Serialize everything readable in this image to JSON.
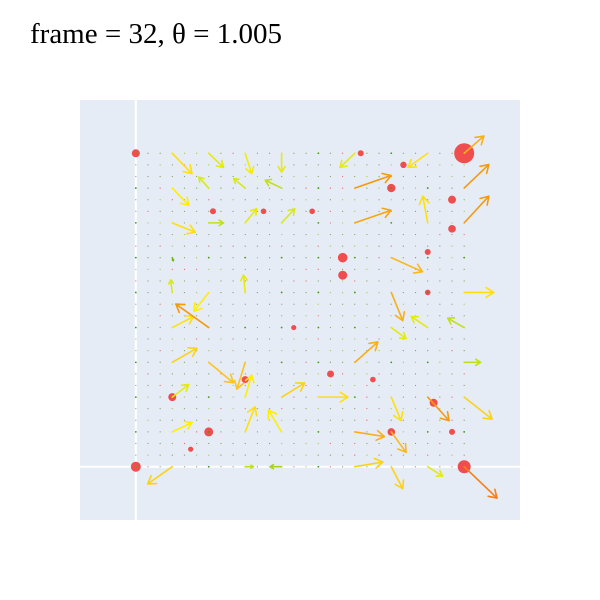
{
  "chart_data": {
    "type": "quiver",
    "title": "frame = 32, θ = 1.005",
    "xlabel": "",
    "ylabel": "",
    "xlim": [
      -0.17,
      1.17
    ],
    "ylim": [
      -0.17,
      1.17
    ],
    "grid": true,
    "grid_lines": {
      "x": [
        0
      ],
      "y": [
        0
      ]
    },
    "background": "#e5ecf6",
    "grid_size": 10,
    "arrows": [
      {
        "x": 0.0,
        "y": 1.0,
        "u": 0,
        "v": 0,
        "m": 0.08
      },
      {
        "x": 0.0,
        "y": 0.889,
        "u": 0,
        "v": 0,
        "m": 0.05
      },
      {
        "x": 0.0,
        "y": 0.778,
        "u": 0,
        "v": 0,
        "m": 0.05
      },
      {
        "x": 0.0,
        "y": 0.667,
        "u": 0,
        "v": 0,
        "m": 0.04
      },
      {
        "x": 0.0,
        "y": 0.556,
        "u": 0,
        "v": 0,
        "m": 0.05
      },
      {
        "x": 0.0,
        "y": 0.444,
        "u": 0,
        "v": 0,
        "m": 0.05
      },
      {
        "x": 0.0,
        "y": 0.333,
        "u": 0,
        "v": 0,
        "m": 0.05
      },
      {
        "x": 0.0,
        "y": 0.222,
        "u": 0,
        "v": 0,
        "m": 0.04
      },
      {
        "x": 0.0,
        "y": 0.111,
        "u": 0,
        "v": 0,
        "m": 0.05
      },
      {
        "x": 0.0,
        "y": 0.0,
        "u": 0,
        "v": 0,
        "m": 0.1
      },
      {
        "x": 0.111,
        "y": 1.0,
        "u": 0.06,
        "v": -0.065,
        "m": 0.55
      },
      {
        "x": 0.111,
        "y": 0.889,
        "u": 0.05,
        "v": -0.055,
        "m": 0.5
      },
      {
        "x": 0.111,
        "y": 0.778,
        "u": 0.07,
        "v": -0.03,
        "m": 0.55
      },
      {
        "x": 0.111,
        "y": 0.667,
        "u": 0.003,
        "v": -0.01,
        "m": 0.15
      },
      {
        "x": 0.111,
        "y": 0.556,
        "u": -0.005,
        "v": 0.04,
        "m": 0.35
      },
      {
        "x": 0.111,
        "y": 0.444,
        "u": 0.065,
        "v": 0.035,
        "m": 0.55
      },
      {
        "x": 0.111,
        "y": 0.333,
        "u": 0.075,
        "v": 0.045,
        "m": 0.6
      },
      {
        "x": 0.111,
        "y": 0.222,
        "u": 0.05,
        "v": 0.04,
        "m": 0.4
      },
      {
        "x": 0.111,
        "y": 0.111,
        "u": 0.06,
        "v": 0.03,
        "m": 0.5
      },
      {
        "x": 0.111,
        "y": 0.0,
        "u": -0.075,
        "v": -0.055,
        "m": 0.6
      },
      {
        "x": 0.222,
        "y": 1.0,
        "u": 0.045,
        "v": -0.045,
        "m": 0.4
      },
      {
        "x": 0.222,
        "y": 0.889,
        "u": -0.03,
        "v": 0.035,
        "m": 0.35
      },
      {
        "x": 0.222,
        "y": 0.778,
        "u": 0.045,
        "v": 0.0,
        "m": 0.3
      },
      {
        "x": 0.222,
        "y": 0.667,
        "u": 0.0,
        "v": 0,
        "m": 0.05
      },
      {
        "x": 0.222,
        "y": 0.556,
        "u": -0.045,
        "v": -0.06,
        "m": 0.5
      },
      {
        "x": 0.222,
        "y": 0.444,
        "u": -0.1,
        "v": 0.075,
        "m": 0.85
      },
      {
        "x": 0.222,
        "y": 0.333,
        "u": 0.075,
        "v": -0.065,
        "m": 0.65
      },
      {
        "x": 0.222,
        "y": 0.222,
        "u": 0.0,
        "v": 0,
        "m": 0.05
      },
      {
        "x": 0.222,
        "y": 0.111,
        "u": 0.0,
        "v": 0,
        "m": 0.05
      },
      {
        "x": 0.222,
        "y": 0.0,
        "u": 0.0,
        "v": 0,
        "m": 0.05
      },
      {
        "x": 0.333,
        "y": 1.0,
        "u": 0.02,
        "v": -0.065,
        "m": 0.45
      },
      {
        "x": 0.333,
        "y": 0.889,
        "u": -0.035,
        "v": 0.03,
        "m": 0.35
      },
      {
        "x": 0.333,
        "y": 0.778,
        "u": 0.035,
        "v": 0.045,
        "m": 0.4
      },
      {
        "x": 0.333,
        "y": 0.667,
        "u": 0.0,
        "v": 0,
        "m": 0.05
      },
      {
        "x": 0.333,
        "y": 0.556,
        "u": -0.005,
        "v": 0.055,
        "m": 0.4
      },
      {
        "x": 0.333,
        "y": 0.444,
        "u": 0.0,
        "v": 0,
        "m": 0.05
      },
      {
        "x": 0.333,
        "y": 0.333,
        "u": -0.025,
        "v": -0.085,
        "m": 0.65
      },
      {
        "x": 0.333,
        "y": 0.222,
        "u": 0.02,
        "v": 0.07,
        "m": 0.5
      },
      {
        "x": 0.333,
        "y": 0.111,
        "u": 0.03,
        "v": 0.08,
        "m": 0.55
      },
      {
        "x": 0.333,
        "y": 0.0,
        "u": 0.025,
        "v": 0.0,
        "m": 0.3
      },
      {
        "x": 0.444,
        "y": 1.0,
        "u": 0.0,
        "v": -0.06,
        "m": 0.4
      },
      {
        "x": 0.444,
        "y": 0.889,
        "u": -0.05,
        "v": 0.025,
        "m": 0.3
      },
      {
        "x": 0.444,
        "y": 0.778,
        "u": 0.04,
        "v": 0.045,
        "m": 0.35
      },
      {
        "x": 0.444,
        "y": 0.667,
        "u": 0.0,
        "v": 0,
        "m": 0.05
      },
      {
        "x": 0.444,
        "y": 0.556,
        "u": 0.0,
        "v": 0,
        "m": 0.05
      },
      {
        "x": 0.444,
        "y": 0.444,
        "u": 0.0,
        "v": 0,
        "m": 0.05
      },
      {
        "x": 0.444,
        "y": 0.333,
        "u": 0.0,
        "v": 0,
        "m": 0.05
      },
      {
        "x": 0.444,
        "y": 0.222,
        "u": 0.07,
        "v": 0.045,
        "m": 0.6
      },
      {
        "x": 0.444,
        "y": 0.111,
        "u": -0.04,
        "v": 0.07,
        "m": 0.5
      },
      {
        "x": 0.444,
        "y": 0.0,
        "u": -0.035,
        "v": 0.0,
        "m": 0.25
      },
      {
        "x": 0.556,
        "y": 1.0,
        "u": 0.0,
        "v": 0,
        "m": 0.05
      },
      {
        "x": 0.556,
        "y": 0.889,
        "u": 0.0,
        "v": 0,
        "m": 0.05
      },
      {
        "x": 0.556,
        "y": 0.778,
        "u": 0.0,
        "v": 0,
        "m": 0.05
      },
      {
        "x": 0.556,
        "y": 0.667,
        "u": 0.0,
        "v": 0,
        "m": 0.05
      },
      {
        "x": 0.556,
        "y": 0.556,
        "u": 0.0,
        "v": 0,
        "m": 0.05
      },
      {
        "x": 0.556,
        "y": 0.444,
        "u": 0.0,
        "v": 0,
        "m": 0.05
      },
      {
        "x": 0.556,
        "y": 0.333,
        "u": 0.0,
        "v": 0,
        "m": 0.05
      },
      {
        "x": 0.556,
        "y": 0.222,
        "u": 0.09,
        "v": 0.0,
        "m": 0.55
      },
      {
        "x": 0.556,
        "y": 0.111,
        "u": 0.0,
        "v": 0,
        "m": 0.05
      },
      {
        "x": 0.556,
        "y": 0.0,
        "u": 0.0,
        "v": 0,
        "m": 0.05
      },
      {
        "x": 0.667,
        "y": 1.0,
        "u": -0.045,
        "v": -0.045,
        "m": 0.4
      },
      {
        "x": 0.667,
        "y": 0.889,
        "u": 0.11,
        "v": 0.04,
        "m": 0.85
      },
      {
        "x": 0.667,
        "y": 0.778,
        "u": 0.11,
        "v": 0.04,
        "m": 0.8
      },
      {
        "x": 0.667,
        "y": 0.667,
        "u": 0.0,
        "v": 0,
        "m": 0.05
      },
      {
        "x": 0.667,
        "y": 0.556,
        "u": 0.0,
        "v": 0,
        "m": 0.05
      },
      {
        "x": 0.667,
        "y": 0.444,
        "u": 0.0,
        "v": 0,
        "m": 0.05
      },
      {
        "x": 0.667,
        "y": 0.333,
        "u": 0.07,
        "v": 0.065,
        "m": 0.75
      },
      {
        "x": 0.667,
        "y": 0.222,
        "u": 0.0,
        "v": 0,
        "m": 0.05
      },
      {
        "x": 0.667,
        "y": 0.111,
        "u": 0.09,
        "v": -0.015,
        "m": 0.75
      },
      {
        "x": 0.667,
        "y": 0.0,
        "u": 0.085,
        "v": 0.015,
        "m": 0.6
      },
      {
        "x": 0.778,
        "y": 1.0,
        "u": 0.0,
        "v": 0,
        "m": 0.05
      },
      {
        "x": 0.778,
        "y": 0.889,
        "u": 0.0,
        "v": 0,
        "m": 0.05
      },
      {
        "x": 0.778,
        "y": 0.778,
        "u": 0.0,
        "v": 0,
        "m": 0.05
      },
      {
        "x": 0.778,
        "y": 0.667,
        "u": 0.095,
        "v": -0.045,
        "m": 0.7
      },
      {
        "x": 0.778,
        "y": 0.556,
        "u": 0.035,
        "v": -0.09,
        "m": 0.75
      },
      {
        "x": 0.778,
        "y": 0.444,
        "u": 0.045,
        "v": -0.035,
        "m": 0.4
      },
      {
        "x": 0.778,
        "y": 0.333,
        "u": 0.0,
        "v": 0,
        "m": 0.05
      },
      {
        "x": 0.778,
        "y": 0.222,
        "u": 0.03,
        "v": -0.075,
        "m": 0.55
      },
      {
        "x": 0.778,
        "y": 0.111,
        "u": 0.045,
        "v": -0.065,
        "m": 0.7
      },
      {
        "x": 0.778,
        "y": 0.0,
        "u": 0.035,
        "v": -0.07,
        "m": 0.6
      },
      {
        "x": 0.889,
        "y": 1.0,
        "u": -0.06,
        "v": -0.045,
        "m": 0.55
      },
      {
        "x": 0.889,
        "y": 0.889,
        "u": 0.0,
        "v": 0,
        "m": 0.05
      },
      {
        "x": 0.889,
        "y": 0.778,
        "u": -0.015,
        "v": 0.085,
        "m": 0.55
      },
      {
        "x": 0.889,
        "y": 0.667,
        "u": 0.0,
        "v": 0,
        "m": 0.05
      },
      {
        "x": 0.889,
        "y": 0.556,
        "u": 0.0,
        "v": 0,
        "m": 0.05
      },
      {
        "x": 0.889,
        "y": 0.444,
        "u": -0.05,
        "v": 0.035,
        "m": 0.4
      },
      {
        "x": 0.889,
        "y": 0.333,
        "u": 0.0,
        "v": 0,
        "m": 0.05
      },
      {
        "x": 0.889,
        "y": 0.222,
        "u": 0.065,
        "v": -0.075,
        "m": 0.85
      },
      {
        "x": 0.889,
        "y": 0.111,
        "u": 0.0,
        "v": 0,
        "m": 0.05
      },
      {
        "x": 0.889,
        "y": 0.0,
        "u": 0.045,
        "v": -0.03,
        "m": 0.4
      },
      {
        "x": 1.0,
        "y": 1.0,
        "u": 0.06,
        "v": 0.055,
        "m": 0.75
      },
      {
        "x": 1.0,
        "y": 0.889,
        "u": 0.075,
        "v": 0.075,
        "m": 0.85
      },
      {
        "x": 1.0,
        "y": 0.778,
        "u": 0.075,
        "v": 0.085,
        "m": 0.85
      },
      {
        "x": 1.0,
        "y": 0.667,
        "u": 0.0,
        "v": 0,
        "m": 0.05
      },
      {
        "x": 1.0,
        "y": 0.556,
        "u": 0.09,
        "v": 0.0,
        "m": 0.55
      },
      {
        "x": 1.0,
        "y": 0.444,
        "u": -0.05,
        "v": 0.03,
        "m": 0.3
      },
      {
        "x": 1.0,
        "y": 0.333,
        "u": 0.05,
        "v": 0.0,
        "m": 0.3
      },
      {
        "x": 1.0,
        "y": 0.222,
        "u": 0.085,
        "v": -0.07,
        "m": 0.6
      },
      {
        "x": 1.0,
        "y": 0.111,
        "u": 0.0,
        "v": 0,
        "m": 0.05
      },
      {
        "x": 1.0,
        "y": 0.0,
        "u": 0.1,
        "v": -0.1,
        "m": 0.95
      }
    ],
    "sources": [
      {
        "x": 0.0,
        "y": 1.0,
        "r": 0.2
      },
      {
        "x": 0.0,
        "y": 0.0,
        "r": 0.3
      },
      {
        "x": 1.0,
        "y": 1.0,
        "r": 0.8
      },
      {
        "x": 1.0,
        "y": 0.0,
        "r": 0.45
      },
      {
        "x": 0.222,
        "y": 0.111,
        "r": 0.25
      },
      {
        "x": 0.111,
        "y": 0.222,
        "r": 0.2
      },
      {
        "x": 0.333,
        "y": 0.278,
        "r": 0.15
      },
      {
        "x": 0.63,
        "y": 0.667,
        "r": 0.28
      },
      {
        "x": 0.63,
        "y": 0.611,
        "r": 0.25
      },
      {
        "x": 0.778,
        "y": 0.889,
        "r": 0.22
      },
      {
        "x": 0.963,
        "y": 0.852,
        "r": 0.2
      },
      {
        "x": 0.963,
        "y": 0.759,
        "r": 0.18
      },
      {
        "x": 0.815,
        "y": 0.963,
        "r": 0.12
      },
      {
        "x": 0.593,
        "y": 0.296,
        "r": 0.15
      },
      {
        "x": 0.907,
        "y": 0.204,
        "r": 0.2
      },
      {
        "x": 0.778,
        "y": 0.111,
        "r": 0.18
      },
      {
        "x": 0.963,
        "y": 0.111,
        "r": 0.1
      },
      {
        "x": 0.235,
        "y": 0.815,
        "r": 0.1
      },
      {
        "x": 0.889,
        "y": 0.685,
        "r": 0.1
      },
      {
        "x": 0.389,
        "y": 0.815,
        "r": 0.08
      },
      {
        "x": 0.537,
        "y": 0.815,
        "r": 0.08
      },
      {
        "x": 0.685,
        "y": 1.0,
        "r": 0.1
      },
      {
        "x": 0.889,
        "y": 0.556,
        "r": 0.08
      },
      {
        "x": 0.481,
        "y": 0.444,
        "r": 0.06
      },
      {
        "x": 0.167,
        "y": 0.056,
        "r": 0.06
      },
      {
        "x": 0.722,
        "y": 0.278,
        "r": 0.08
      }
    ]
  },
  "colors": {
    "background_page": "#ffffff",
    "plot_background": "#e5ecf6",
    "gridline": "#ffffff",
    "source_marker": "#ef4444",
    "colorscale": [
      "#2e8b0f",
      "#7cbd1a",
      "#d4e81a",
      "#ffee00",
      "#fbbf24",
      "#f59e0b",
      "#f97316"
    ]
  }
}
